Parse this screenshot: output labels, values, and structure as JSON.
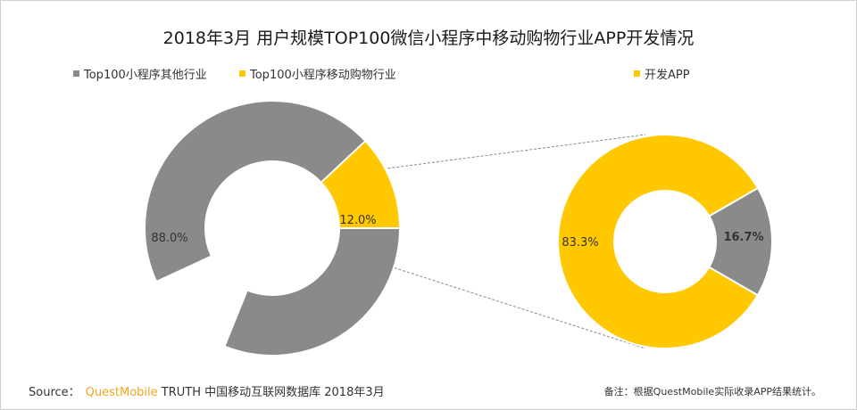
{
  "chart_data": [
    {
      "type": "pie",
      "variant": "doughnut",
      "categories": [
        "Top100小程序其他行业",
        "Top100小程序移动购物行业"
      ],
      "values": [
        88.0,
        12.0
      ],
      "labels": [
        "88.0%",
        "12.0%"
      ],
      "colors": [
        "#8a8a8a",
        "#ffc800"
      ]
    },
    {
      "type": "pie",
      "variant": "doughnut",
      "categories": [
        "开发APP",
        ""
      ],
      "values": [
        83.3,
        16.7
      ],
      "labels": [
        "83.3%",
        "16.7%"
      ],
      "colors": [
        "#ffc800",
        "#8a8a8a"
      ]
    }
  ],
  "title": "2018年3月 用户规模TOP100微信小程序中移动购物行业APP开发情况",
  "legend": [
    {
      "label": "Top100小程序其他行业",
      "color": "#8a8a8a"
    },
    {
      "label": "Top100小程序移动购物行业",
      "color": "#ffc800"
    },
    {
      "label": "开发APP",
      "color": "#ffc800"
    }
  ],
  "footer": {
    "source_prefix": "Source：",
    "brand": "QuestMobile",
    "source_rest": "TRUTH 中国移动互联网数据库 2018年3月",
    "note": "备注：根据QuestMobile实际收录APP结果统计。"
  }
}
